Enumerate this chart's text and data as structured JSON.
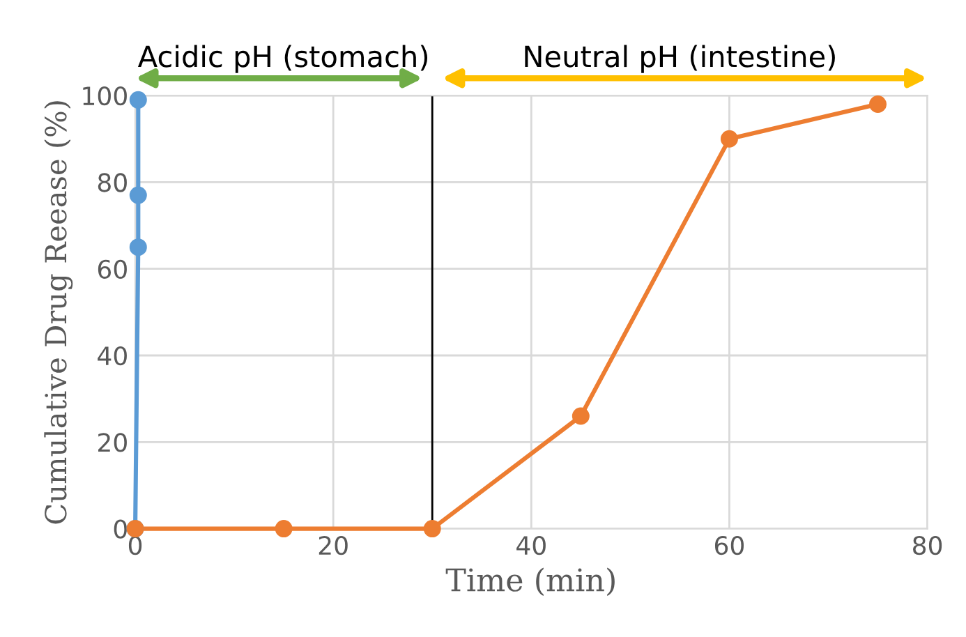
{
  "chart_data": {
    "type": "line",
    "xlabel": "Time (min)",
    "ylabel": "Cumulative Drug Reease (%)",
    "series": [
      {
        "type": "line",
        "color": "#5b9bd5",
        "x": [
          0,
          0.3,
          0.3,
          0.3
        ],
        "values": [
          0,
          65,
          77,
          99
        ]
      },
      {
        "color": "#ed7d31",
        "x": [
          0,
          15,
          30,
          45,
          60,
          75
        ],
        "values": [
          0,
          0,
          0,
          26,
          90,
          98
        ]
      }
    ],
    "xlim": [
      0,
      80
    ],
    "xticks": [
      0,
      20,
      40,
      60,
      80
    ],
    "ylim": [
      0,
      100
    ],
    "yticks": [
      0,
      20,
      40,
      60,
      80,
      100
    ],
    "grid": true,
    "marker": "circle",
    "line_style": "solid",
    "ref_lines": [
      {
        "axis": "x",
        "value": 30,
        "color": "#000000"
      }
    ],
    "annotations": [
      "Acidic pH (stomach)",
      "Neutral pH (intestine)"
    ]
  }
}
